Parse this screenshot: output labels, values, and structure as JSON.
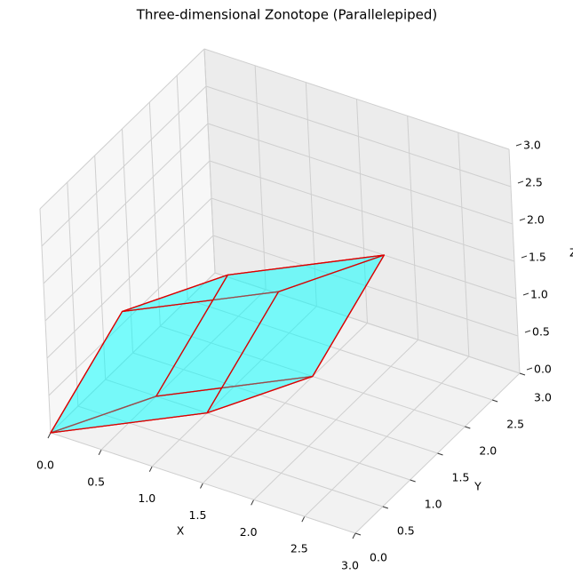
{
  "chart_data": {
    "type": "polyhedron3d",
    "title": "Three-dimensional Zonotope (Parallelepiped)",
    "xlabel": "X",
    "ylabel": "Y",
    "zlabel": "Z",
    "xlim": [
      0,
      3
    ],
    "ylim": [
      0,
      3
    ],
    "zlim": [
      0,
      3
    ],
    "xticks": [
      {
        "value": 0,
        "label": "0.0"
      },
      0.5,
      {
        "value": 1,
        "label": "1.0"
      },
      1.5,
      {
        "value": 2,
        "label": "2.0"
      },
      2.5,
      {
        "value": 3,
        "label": "3.0"
      }
    ],
    "yticks": [
      {
        "value": 0,
        "label": "0.0"
      },
      0.5,
      {
        "value": 1,
        "label": "1.0"
      },
      1.5,
      {
        "value": 2,
        "label": "2.0"
      },
      2.5,
      {
        "value": 3,
        "label": "3.0"
      }
    ],
    "zticks": [
      {
        "value": 0,
        "label": "0.0"
      },
      0.5,
      {
        "value": 1,
        "label": "1.0"
      },
      1.5,
      {
        "value": 2,
        "label": "2.0"
      },
      2.5,
      {
        "value": 3,
        "label": "3.0"
      }
    ],
    "grid": true,
    "vertices": [
      [
        0,
        0,
        0
      ],
      [
        1,
        1,
        0
      ],
      [
        0.2,
        1,
        1
      ],
      [
        0.5,
        1,
        0
      ],
      [
        1.2,
        2,
        1
      ],
      [
        1.5,
        2,
        0
      ],
      [
        0.7,
        2,
        1
      ],
      [
        1.7,
        3,
        1
      ]
    ],
    "faces": [
      [
        0,
        1,
        5,
        3
      ],
      [
        0,
        3,
        6,
        2
      ],
      [
        0,
        1,
        4,
        2
      ],
      [
        2,
        4,
        7,
        6
      ],
      [
        3,
        5,
        7,
        6
      ],
      [
        1,
        5,
        7,
        4
      ]
    ],
    "color": "#00ffff",
    "edgecolor": "#dd0000"
  }
}
